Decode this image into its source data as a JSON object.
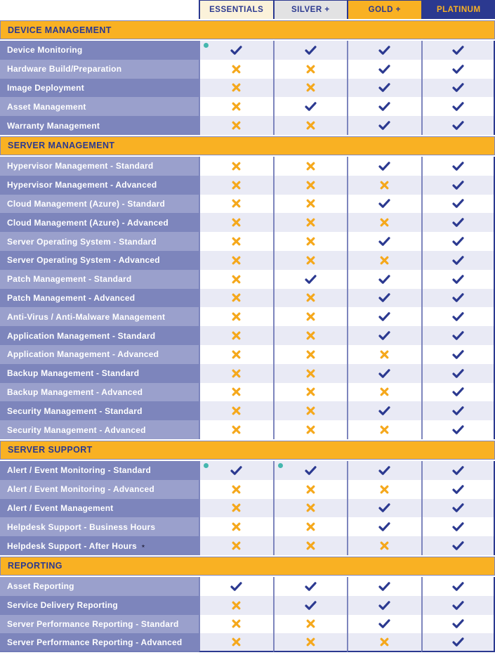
{
  "colors": {
    "navy": "#2B3990",
    "gold": "#F9B123",
    "check": "#2B3990",
    "cross": "#F5A81C",
    "dot": "#45B7AE",
    "star": "#30304E",
    "label_dark": "#7D85BC",
    "label_light": "#9AA0CC",
    "cell_tint": "#E9EAF5",
    "cell_white": "#FFFFFF"
  },
  "symbols": {
    "star": "⋆"
  },
  "plans": [
    {
      "id": "essentials",
      "label": "ESSENTIALS",
      "bg": "#FBF2DA",
      "fg": "#2B3990"
    },
    {
      "id": "silver",
      "label": "SILVER +",
      "bg": "#E2E2E3",
      "fg": "#2B3990"
    },
    {
      "id": "gold",
      "label": "GOLD +",
      "bg": "#F9B123",
      "fg": "#2B3990"
    },
    {
      "id": "platinum",
      "label": "PLATINUM",
      "bg": "#2B3990",
      "fg": "#F9B123"
    }
  ],
  "sections": [
    {
      "title": "DEVICE MANAGEMENT",
      "rows": [
        {
          "label": "Device Monitoring",
          "marks": [
            "check",
            "check",
            "check",
            "check"
          ],
          "dots": [
            0
          ]
        },
        {
          "label": "Hardware Build/Preparation",
          "marks": [
            "cross",
            "cross",
            "check",
            "check"
          ]
        },
        {
          "label": "Image Deployment",
          "marks": [
            "cross",
            "cross",
            "check",
            "check"
          ]
        },
        {
          "label": "Asset Management",
          "marks": [
            "cross",
            "check",
            "check",
            "check"
          ]
        },
        {
          "label": "Warranty Management",
          "marks": [
            "cross",
            "cross",
            "check",
            "check"
          ]
        }
      ]
    },
    {
      "title": "SERVER MANAGEMENT",
      "rows": [
        {
          "label": "Hypervisor Management - Standard",
          "marks": [
            "cross",
            "cross",
            "check",
            "check"
          ]
        },
        {
          "label": "Hypervisor Management - Advanced",
          "marks": [
            "cross",
            "cross",
            "cross",
            "check"
          ]
        },
        {
          "label": "Cloud Management (Azure) - Standard",
          "marks": [
            "cross",
            "cross",
            "check",
            "check"
          ]
        },
        {
          "label": "Cloud Management (Azure) - Advanced",
          "marks": [
            "cross",
            "cross",
            "cross",
            "check"
          ]
        },
        {
          "label": "Server Operating System - Standard",
          "marks": [
            "cross",
            "cross",
            "check",
            "check"
          ]
        },
        {
          "label": "Server Operating System - Advanced",
          "marks": [
            "cross",
            "cross",
            "cross",
            "check"
          ]
        },
        {
          "label": "Patch Management - Standard",
          "marks": [
            "cross",
            "check",
            "check",
            "check"
          ]
        },
        {
          "label": "Patch Management - Advanced",
          "marks": [
            "cross",
            "cross",
            "check",
            "check"
          ]
        },
        {
          "label": "Anti-Virus / Anti-Malware Management",
          "marks": [
            "cross",
            "cross",
            "check",
            "check"
          ]
        },
        {
          "label": "Application Management - Standard",
          "marks": [
            "cross",
            "cross",
            "check",
            "check"
          ]
        },
        {
          "label": "Application Management - Advanced",
          "marks": [
            "cross",
            "cross",
            "cross",
            "check"
          ]
        },
        {
          "label": "Backup Management - Standard",
          "marks": [
            "cross",
            "cross",
            "check",
            "check"
          ]
        },
        {
          "label": "Backup Management - Advanced",
          "marks": [
            "cross",
            "cross",
            "cross",
            "check"
          ]
        },
        {
          "label": "Security Management - Standard",
          "marks": [
            "cross",
            "cross",
            "check",
            "check"
          ]
        },
        {
          "label": "Security Management - Advanced",
          "marks": [
            "cross",
            "cross",
            "cross",
            "check"
          ]
        }
      ]
    },
    {
      "title": "SERVER SUPPORT",
      "rows": [
        {
          "label": "Alert / Event Monitoring - Standard",
          "marks": [
            "check",
            "check",
            "check",
            "check"
          ],
          "dots": [
            0,
            1
          ]
        },
        {
          "label": "Alert / Event Monitoring - Advanced",
          "marks": [
            "cross",
            "cross",
            "cross",
            "check"
          ]
        },
        {
          "label": "Alert / Event Management",
          "marks": [
            "cross",
            "cross",
            "check",
            "check"
          ]
        },
        {
          "label": "Helpdesk Support - Business Hours",
          "marks": [
            "cross",
            "cross",
            "check",
            "check"
          ]
        },
        {
          "label": "Helpdesk Support - After Hours",
          "marks": [
            "cross",
            "cross",
            "cross",
            "check"
          ],
          "star": true
        }
      ]
    },
    {
      "title": "REPORTING",
      "rows": [
        {
          "label": "Asset Reporting",
          "marks": [
            "check",
            "check",
            "check",
            "check"
          ]
        },
        {
          "label": "Service Delivery Reporting",
          "marks": [
            "cross",
            "check",
            "check",
            "check"
          ]
        },
        {
          "label": "Server Performance Reporting - Standard",
          "marks": [
            "cross",
            "cross",
            "check",
            "check"
          ]
        },
        {
          "label": "Server Performance Reporting - Advanced",
          "marks": [
            "cross",
            "cross",
            "cross",
            "check"
          ]
        }
      ]
    }
  ]
}
